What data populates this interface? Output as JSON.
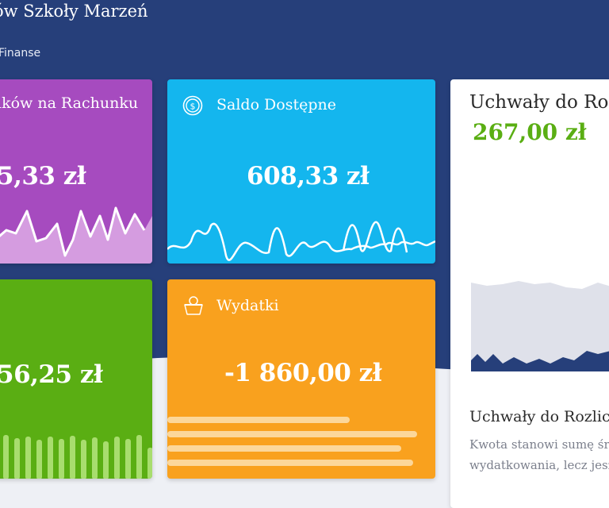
{
  "header": {
    "title": "ów Szkoły Marzeń",
    "breadcrumb": "Finanse"
  },
  "cards": {
    "account_balance": {
      "label": "lków na Rachunku",
      "value": "5,33 zł"
    },
    "available_balance": {
      "label": "Saldo Dostępne",
      "value": "608,33 zł",
      "icon": "dollar-coin-icon"
    },
    "income": {
      "value": "56,25 zł"
    },
    "expenses": {
      "label": "Wydatki",
      "value": "-1 860,00 zł",
      "icon": "basket-icon"
    }
  },
  "resolutions": {
    "title": "Uchwały do Roz",
    "amount": "267,00 zł",
    "subtitle": "Uchwały do Rozlicz",
    "desc_line1": "Kwota stanowi sumę śr",
    "desc_line2": "wydatkowania, lecz jesz"
  },
  "colors": {
    "navy": "#263f7a",
    "purple": "#a64bbf",
    "blue": "#14b6ee",
    "green": "#5aae13",
    "orange": "#f9a11e",
    "amount_green": "#5aae13"
  }
}
